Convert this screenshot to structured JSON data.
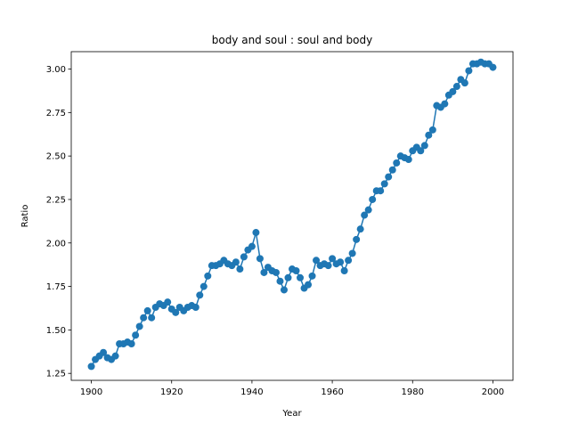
{
  "chart_data": {
    "type": "line",
    "title": "body and soul : soul and body",
    "xlabel": "Year",
    "ylabel": "Ratio",
    "xlim": [
      1895,
      2005
    ],
    "ylim": [
      1.21,
      3.1
    ],
    "xticks": [
      1900,
      1920,
      1940,
      1960,
      1980,
      2000
    ],
    "xtick_labels": [
      "1900",
      "1920",
      "1940",
      "1960",
      "1980",
      "2000"
    ],
    "yticks": [
      1.25,
      1.5,
      1.75,
      2.0,
      2.25,
      2.5,
      2.75,
      3.0
    ],
    "ytick_labels": [
      "1.25",
      "1.50",
      "1.75",
      "2.00",
      "2.25",
      "2.50",
      "2.75",
      "3.00"
    ],
    "grid": false,
    "color": "#1f77b4",
    "marker": "circle",
    "x": [
      1900,
      1901,
      1902,
      1903,
      1904,
      1905,
      1906,
      1907,
      1908,
      1909,
      1910,
      1911,
      1912,
      1913,
      1914,
      1915,
      1916,
      1917,
      1918,
      1919,
      1920,
      1921,
      1922,
      1923,
      1924,
      1925,
      1926,
      1927,
      1928,
      1929,
      1930,
      1931,
      1932,
      1933,
      1934,
      1935,
      1936,
      1937,
      1938,
      1939,
      1940,
      1941,
      1942,
      1943,
      1944,
      1945,
      1946,
      1947,
      1948,
      1949,
      1950,
      1951,
      1952,
      1953,
      1954,
      1955,
      1956,
      1957,
      1958,
      1959,
      1960,
      1961,
      1962,
      1963,
      1964,
      1965,
      1966,
      1967,
      1968,
      1969,
      1970,
      1971,
      1972,
      1973,
      1974,
      1975,
      1976,
      1977,
      1978,
      1979,
      1980,
      1981,
      1982,
      1983,
      1984,
      1985,
      1986,
      1987,
      1988,
      1989,
      1990,
      1991,
      1992,
      1993,
      1994,
      1995,
      1996,
      1997,
      1998,
      1999,
      2000
    ],
    "y": [
      1.29,
      1.33,
      1.35,
      1.37,
      1.34,
      1.33,
      1.35,
      1.42,
      1.42,
      1.43,
      1.42,
      1.47,
      1.52,
      1.57,
      1.61,
      1.57,
      1.63,
      1.65,
      1.64,
      1.66,
      1.62,
      1.6,
      1.63,
      1.61,
      1.63,
      1.64,
      1.63,
      1.7,
      1.75,
      1.81,
      1.87,
      1.87,
      1.88,
      1.9,
      1.88,
      1.87,
      1.89,
      1.85,
      1.92,
      1.96,
      1.98,
      2.06,
      1.91,
      1.83,
      1.86,
      1.84,
      1.83,
      1.78,
      1.73,
      1.8,
      1.85,
      1.84,
      1.8,
      1.74,
      1.76,
      1.81,
      1.9,
      1.87,
      1.88,
      1.87,
      1.91,
      1.88,
      1.89,
      1.84,
      1.9,
      1.94,
      2.02,
      2.08,
      2.16,
      2.19,
      2.25,
      2.3,
      2.3,
      2.34,
      2.38,
      2.42,
      2.46,
      2.5,
      2.49,
      2.48,
      2.53,
      2.55,
      2.53,
      2.56,
      2.62,
      2.65,
      2.79,
      2.78,
      2.8,
      2.85,
      2.87,
      2.9,
      2.94,
      2.92,
      2.99,
      3.03,
      3.03,
      3.04,
      3.03,
      3.03,
      3.01
    ]
  }
}
